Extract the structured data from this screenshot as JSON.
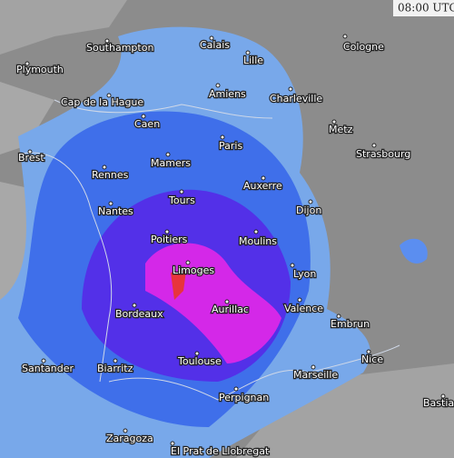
{
  "time": "08:00 UTC",
  "cities": [
    "Southampton",
    "Calais",
    "Cologne",
    "Plymouth",
    "Lille",
    "Amiens",
    "Charleville",
    "Cap de la Hague",
    "Caen",
    "Metz",
    "Paris",
    "Brest",
    "Strasbourg",
    "Mamers",
    "Rennes",
    "Auxerre",
    "Tours",
    "Nantes",
    "Dijon",
    "Poitiers",
    "Moulins",
    "Limoges",
    "Lyon",
    "Aurillac",
    "Valence",
    "Bordeaux",
    "Embrun",
    "Toulouse",
    "Nice",
    "Santander",
    "Biarritz",
    "Marseille",
    "Perpignan",
    "Bastia",
    "Zaragoza",
    "El Prat de Llobregat"
  ]
}
